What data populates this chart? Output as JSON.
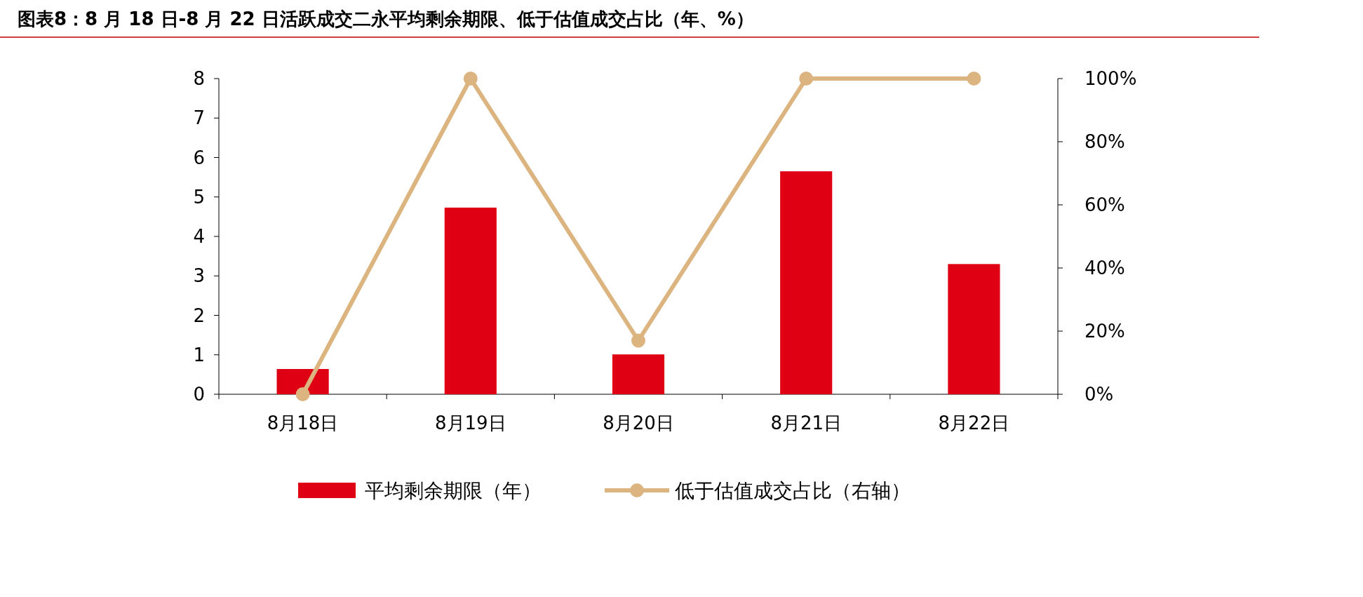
{
  "chart_data": {
    "type": "bar",
    "title": "图表8：8 月 18 日-8 月 22 日活跃成交二永平均剩余期限、低于估值成交占比（年、%）",
    "categories": [
      "8月18日",
      "8月19日",
      "8月20日",
      "8月21日",
      "8月22日"
    ],
    "series": [
      {
        "name": "平均剩余期限（年）",
        "color": "#e00014",
        "values": [
          0.64,
          4.73,
          1.01,
          5.65,
          3.3
        ]
      },
      {
        "name": "低于估值成交占比（右轴）",
        "type": "line",
        "axis": "y2",
        "color": "#dcb47f",
        "marker": "circle",
        "values": [
          0,
          100,
          17,
          100,
          100
        ]
      }
    ],
    "ylim": [
      0,
      8
    ],
    "yticks": [
      0,
      1,
      2,
      3,
      4,
      5,
      6,
      7,
      8
    ],
    "y2lim": [
      0,
      100
    ],
    "y2ticks": [
      {
        "value": 0,
        "label": "0%"
      },
      {
        "value": 20,
        "label": "20%"
      },
      {
        "value": 40,
        "label": "40%"
      },
      {
        "value": 60,
        "label": "60%"
      },
      {
        "value": 80,
        "label": "80%"
      },
      {
        "value": 100,
        "label": "100%"
      }
    ],
    "grid": false,
    "legend": "bottom"
  }
}
